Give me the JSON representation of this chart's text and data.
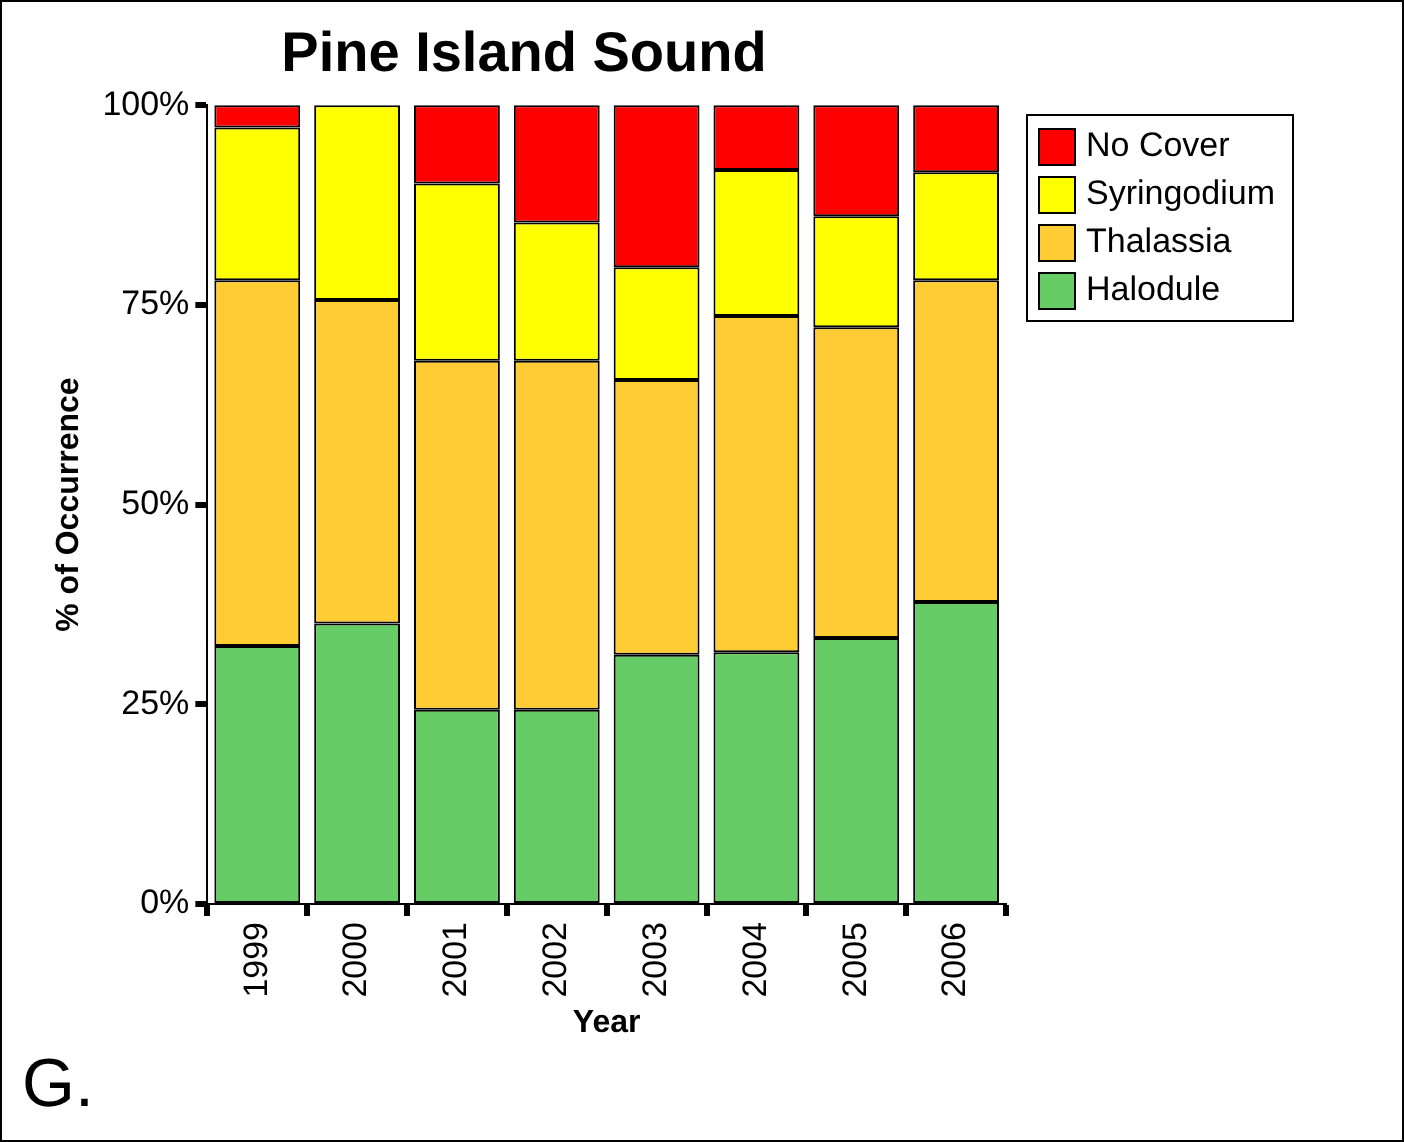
{
  "chart_data": {
    "type": "bar",
    "title": "Pine Island Sound",
    "xlabel": "Year",
    "ylabel": "% of Occurrence",
    "stacked": true,
    "legend": "top right",
    "grid": false,
    "categories": [
      "1999",
      "2000",
      "2001",
      "2002",
      "2003",
      "2004",
      "2005",
      "2006"
    ],
    "series": [
      {
        "name": "Halodule",
        "color": "#66cc66",
        "values": [
          32.3,
          35.1,
          24.3,
          24.3,
          31.2,
          31.5,
          33.3,
          37.8
        ]
      },
      {
        "name": "Thalassia",
        "color": "#ffcc33",
        "values": [
          45.8,
          40.5,
          43.7,
          43.7,
          34.4,
          42.1,
          38.9,
          40.3
        ]
      },
      {
        "name": "Syringodium",
        "color": "#ffff00",
        "values": [
          19.1,
          24.4,
          22.2,
          17.3,
          14.1,
          18.3,
          13.9,
          13.5
        ]
      },
      {
        "name": "No Cover",
        "color": "#ff0000",
        "values": [
          2.8,
          0,
          9.8,
          14.7,
          20.3,
          8.1,
          13.9,
          8.4
        ]
      }
    ],
    "ylim": [
      0,
      100
    ],
    "yticks": [
      {
        "value": 0,
        "label": "0%"
      },
      {
        "value": 25,
        "label": "25%"
      },
      {
        "value": 50,
        "label": "50%"
      },
      {
        "value": 75,
        "label": "75%"
      },
      {
        "value": 100,
        "label": "100%"
      }
    ],
    "annotations": [
      "G."
    ]
  }
}
